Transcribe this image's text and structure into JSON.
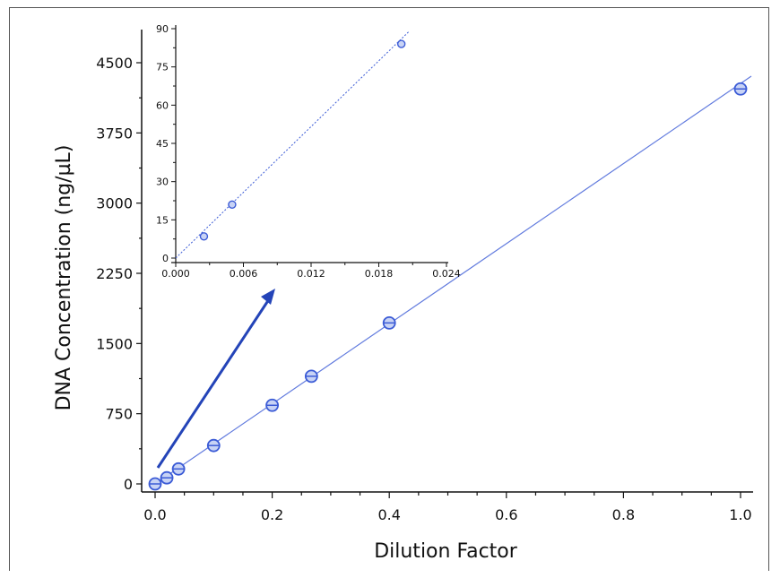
{
  "chart_data": [
    {
      "type": "scatter",
      "role": "main",
      "xlabel": "Dilution Factor",
      "ylabel": "DNA Concentration (ng/µL)",
      "xlim": [
        0,
        1.0
      ],
      "ylim": [
        0,
        4750
      ],
      "xticks": [
        "0.0",
        "0.2",
        "0.4",
        "0.6",
        "0.8",
        "1.0"
      ],
      "yticks": [
        "0",
        "750",
        "1500",
        "2250",
        "3000",
        "3750",
        "4500"
      ],
      "series": [
        {
          "points": [
            {
              "x": 0.0,
              "y": 0
            },
            {
              "x": 0.02,
              "y": 65
            },
            {
              "x": 0.04,
              "y": 160
            },
            {
              "x": 0.1,
              "y": 410
            },
            {
              "x": 0.2,
              "y": 840
            },
            {
              "x": 0.267,
              "y": 1150
            },
            {
              "x": 0.4,
              "y": 1720
            },
            {
              "x": 1.0,
              "y": 4220
            }
          ],
          "fit": {
            "x": [
              0.0,
              1.0
            ],
            "y": [
              0,
              4280
            ]
          }
        }
      ],
      "grid": false
    },
    {
      "type": "scatter",
      "role": "inset",
      "xlim": [
        0,
        0.024
      ],
      "ylim": [
        0,
        90
      ],
      "xticks": [
        "0.000",
        "0.006",
        "0.012",
        "0.018",
        "0.024"
      ],
      "yticks": [
        "0",
        "15",
        "30",
        "45",
        "60",
        "75",
        "90"
      ],
      "series": [
        {
          "points": [
            {
              "x": 0.0025,
              "y": 8.5
            },
            {
              "x": 0.005,
              "y": 21
            },
            {
              "x": 0.02,
              "y": 84
            }
          ],
          "fit": {
            "x": [
              0.0,
              0.0207
            ],
            "y": [
              0,
              89
            ]
          }
        }
      ],
      "grid": false
    }
  ],
  "colors": {
    "series": "#3b5bd6",
    "arrow": "#2444b8",
    "axis": "#111111"
  }
}
